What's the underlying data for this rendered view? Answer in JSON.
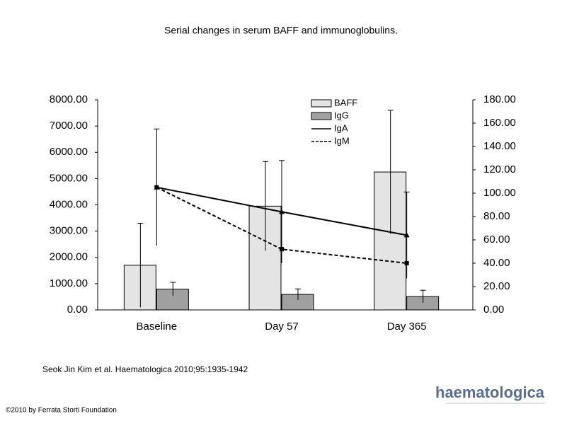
{
  "header": {
    "title": "Serial changes in serum BAFF and immunoglobulins."
  },
  "chart_data": {
    "type": "bar_line",
    "categories": [
      "Baseline",
      "Day 57",
      "Day 365"
    ],
    "ylim": [
      0,
      8000
    ],
    "yticks": [
      {
        "value": 0,
        "label": "0.00"
      },
      {
        "value": 1000,
        "label": "1000.00"
      },
      {
        "value": 2000,
        "label": "2000.00"
      },
      {
        "value": 3000,
        "label": "3000.00"
      },
      {
        "value": 4000,
        "label": "4000.00"
      },
      {
        "value": 5000,
        "label": "5000.00"
      },
      {
        "value": 6000,
        "label": "6000.00"
      },
      {
        "value": 7000,
        "label": "7000.00"
      },
      {
        "value": 8000,
        "label": "8000.00"
      }
    ],
    "y2lim": [
      0,
      180
    ],
    "y2ticks": [
      {
        "value": 0,
        "label": "0.00"
      },
      {
        "value": 20,
        "label": "20.00"
      },
      {
        "value": 40,
        "label": "40.00"
      },
      {
        "value": 60,
        "label": "60.00"
      },
      {
        "value": 80,
        "label": "80.00"
      },
      {
        "value": 100,
        "label": "100.00"
      },
      {
        "value": 120,
        "label": "120.00"
      },
      {
        "value": 140,
        "label": "140.00"
      },
      {
        "value": 160,
        "label": "160.00"
      },
      {
        "value": 180,
        "label": "180.00"
      }
    ],
    "series": [
      {
        "name": "BAFF",
        "type": "bar",
        "color": "#e4e4e4",
        "values": [
          1700,
          3950,
          5250
        ],
        "errors": [
          1600,
          1700,
          2350
        ]
      },
      {
        "name": "IgG",
        "type": "bar",
        "color": "#a0a0a0",
        "values": [
          790,
          590,
          510
        ],
        "errors": [
          260,
          210,
          240
        ]
      },
      {
        "name": "IgA",
        "type": "line",
        "axis": "y2",
        "color": "#000000",
        "dashed": false,
        "values": [
          105,
          84,
          64
        ],
        "errors": [
          50,
          44,
          37
        ]
      },
      {
        "name": "IgM",
        "type": "line",
        "axis": "y2",
        "color": "#000000",
        "dashed": true,
        "values": [
          105,
          52,
          40
        ]
      }
    ]
  },
  "footer": {
    "citation": "Seok Jin Kim et al. Haematologica 2010;95:1935-1942",
    "copyright": "©2010 by Ferrata Storti Foundation",
    "logo": "haematologica"
  }
}
